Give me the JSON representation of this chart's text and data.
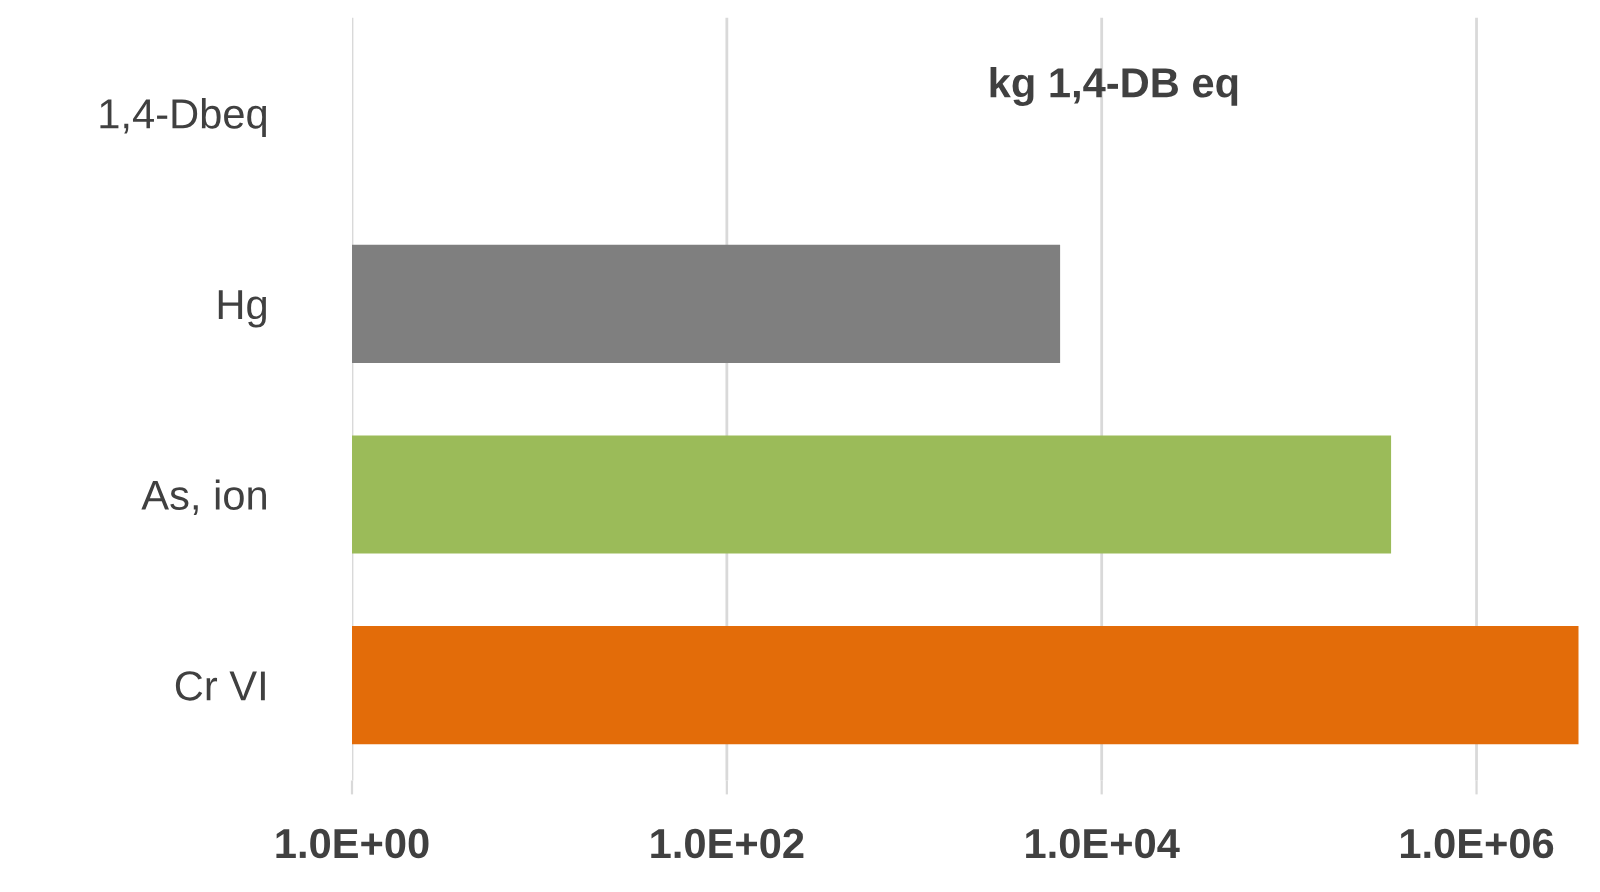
{
  "chart_data": {
    "type": "bar",
    "orientation": "horizontal",
    "log": "x",
    "categories": [
      "1,4-Dbeq",
      "Hg",
      "As, ion",
      "Cr VI"
    ],
    "values": [
      null,
      6000,
      350000,
      3500000
    ],
    "colors": [
      null,
      "#7f7f7f",
      "#9bbb59",
      "#e36c09"
    ],
    "xlim": [
      1,
      3600000
    ],
    "xticks": [
      {
        "value": 1,
        "label": "1.0E+00"
      },
      {
        "value": 100,
        "label": "1.0E+02"
      },
      {
        "value": 10000,
        "label": "1.0E+04"
      },
      {
        "value": 1000000,
        "label": "1.0E+06"
      }
    ],
    "grid": "x",
    "annotations": [
      "kg 1,4-DB eq"
    ]
  }
}
